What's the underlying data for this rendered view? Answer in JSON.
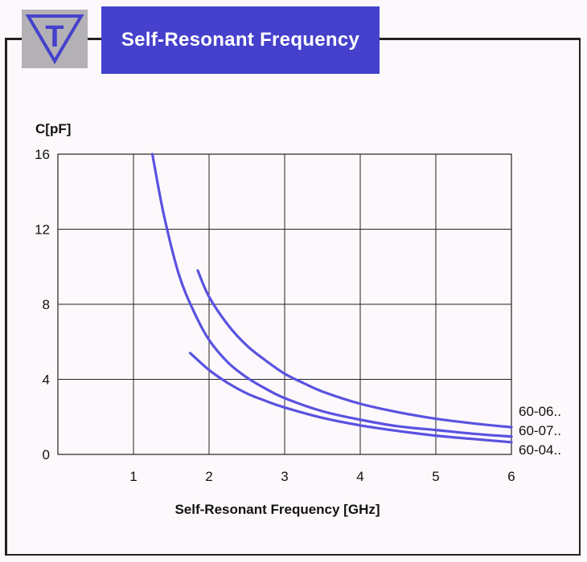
{
  "header": {
    "title": "Self-Resonant Frequency",
    "logo_letter": "T"
  },
  "colors": {
    "accent": "#4541cc",
    "curve": "#5a52e0",
    "logo_bg": "#b3b1b6",
    "background": "#fdf8fb"
  },
  "chart_data": {
    "type": "line",
    "title": "",
    "xlabel": "Self-Resonant Frequency [GHz]",
    "ylabel": "C[pF]",
    "xlim": [
      0,
      6
    ],
    "ylim": [
      0,
      16
    ],
    "xticks": [
      1,
      2,
      3,
      4,
      5,
      6
    ],
    "yticks": [
      0,
      4,
      8,
      12,
      16
    ],
    "grid": true,
    "series": [
      {
        "name": "60-06..",
        "x": [
          1.85,
          2.0,
          2.25,
          2.5,
          2.75,
          3.0,
          3.25,
          3.5,
          4.0,
          4.5,
          5.0,
          5.5,
          6.0
        ],
        "y": [
          9.8,
          8.4,
          6.9,
          5.8,
          5.0,
          4.3,
          3.8,
          3.35,
          2.7,
          2.25,
          1.9,
          1.65,
          1.45
        ]
      },
      {
        "name": "60-07..",
        "x": [
          1.25,
          1.4,
          1.6,
          1.8,
          2.0,
          2.25,
          2.5,
          2.75,
          3.0,
          3.5,
          4.0,
          4.5,
          5.0,
          5.5,
          6.0
        ],
        "y": [
          16.0,
          12.8,
          9.6,
          7.6,
          6.1,
          4.9,
          4.1,
          3.5,
          3.0,
          2.3,
          1.85,
          1.5,
          1.3,
          1.1,
          0.95
        ]
      },
      {
        "name": "60-04..",
        "x": [
          1.75,
          2.0,
          2.25,
          2.5,
          2.75,
          3.0,
          3.5,
          4.0,
          4.5,
          5.0,
          5.5,
          6.0
        ],
        "y": [
          5.4,
          4.5,
          3.8,
          3.25,
          2.85,
          2.5,
          1.95,
          1.55,
          1.25,
          1.0,
          0.82,
          0.65
        ]
      }
    ]
  }
}
